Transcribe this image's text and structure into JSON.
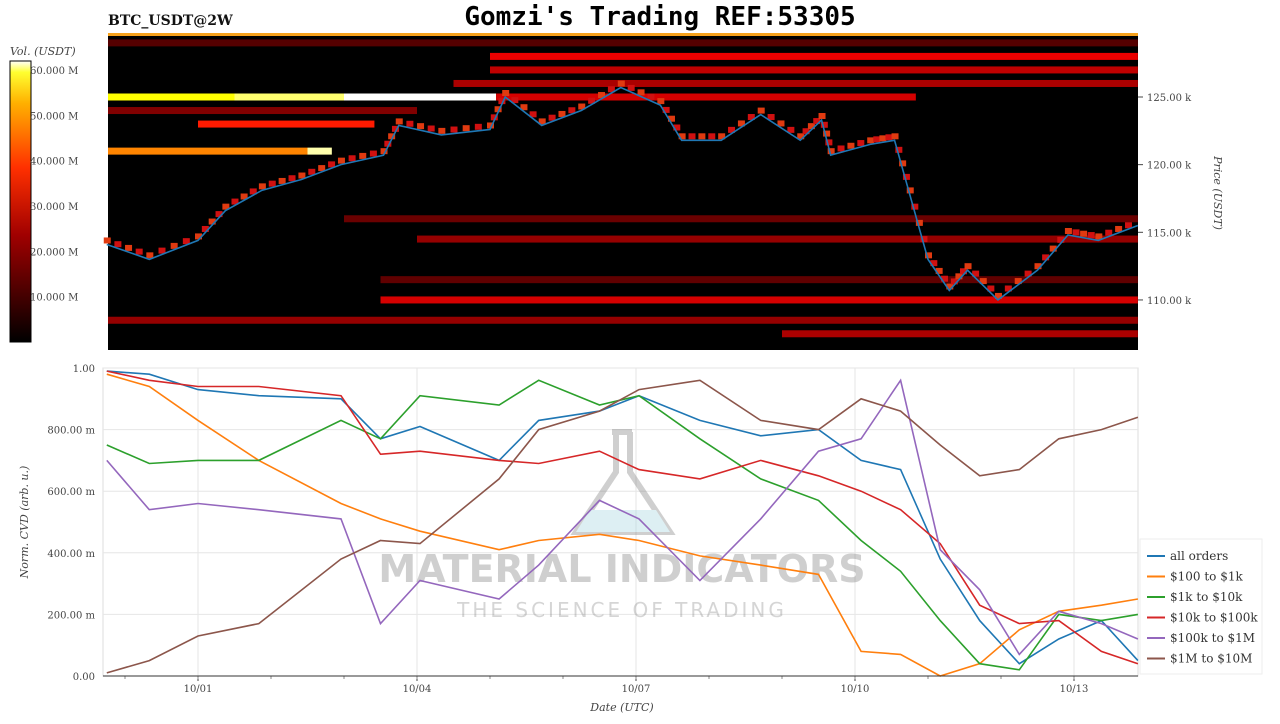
{
  "title": "Gomzi's Trading REF:53305",
  "symbol": "BTC_USDT@2W",
  "watermark": {
    "main": "MATERIAL INDICATORS",
    "sub": "THE SCIENCE OF TRADING"
  },
  "chart_data": [
    {
      "type": "heatmap",
      "colorbar": {
        "label": "Vol. (USDT)",
        "ticks": [
          "10.000 M",
          "20.000 M",
          "30.000 M",
          "40.000 M",
          "50.000 M",
          "60.000 M"
        ],
        "tick_values_M": [
          10,
          20,
          30,
          40,
          50,
          60
        ],
        "range_M": [
          0,
          62
        ],
        "colormap": "hot"
      },
      "ylabel": "Price (USDT)",
      "y_ticks": [
        "110.00 k",
        "115.00 k",
        "120.00 k",
        "125.00 k"
      ],
      "y_tick_values_k": [
        110,
        115,
        120,
        125
      ],
      "ylim_k": [
        106.3,
        129.6
      ],
      "price_color": "#1f77b4",
      "price_k": [
        [
          "09/29 18:00",
          114.1
        ],
        [
          "09/30 08:00",
          113.0
        ],
        [
          "10/01 00:00",
          114.4
        ],
        [
          "10/01 09:00",
          116.6
        ],
        [
          "10/01 21:00",
          118.1
        ],
        [
          "10/02 10:00",
          118.9
        ],
        [
          "10/02 23:00",
          120.0
        ],
        [
          "10/03 13:00",
          120.7
        ],
        [
          "10/03 18:00",
          122.9
        ],
        [
          "10/04 08:00",
          122.2
        ],
        [
          "10/05 00:00",
          122.6
        ],
        [
          "10/05 05:00",
          125.0
        ],
        [
          "10/05 17:00",
          122.9
        ],
        [
          "10/06 06:00",
          124.0
        ],
        [
          "10/06 19:00",
          125.7
        ],
        [
          "10/07 08:00",
          124.4
        ],
        [
          "10/07 15:00",
          121.8
        ],
        [
          "10/08 04:00",
          121.8
        ],
        [
          "10/08 17:00",
          123.7
        ],
        [
          "10/09 06:00",
          121.8
        ],
        [
          "10/09 13:00",
          123.3
        ],
        [
          "10/09 16:00",
          120.7
        ],
        [
          "10/10 05:00",
          121.5
        ],
        [
          "10/10 13:00",
          121.8
        ],
        [
          "10/10 18:00",
          117.8
        ],
        [
          "10/11 00:00",
          113.0
        ],
        [
          "10/11 07:00",
          110.7
        ],
        [
          "10/11 13:00",
          112.2
        ],
        [
          "10/11 23:00",
          110.0
        ],
        [
          "10/12 12:00",
          112.2
        ],
        [
          "10/12 22:00",
          114.8
        ],
        [
          "10/13 08:00",
          114.4
        ],
        [
          "10/13 21:00",
          115.5
        ]
      ],
      "liquidity_bands": [
        {
          "price_k": 125.0,
          "start": "09/29 18:00",
          "end": "10/01 12:00",
          "vol_M": 48
        },
        {
          "price_k": 125.0,
          "start": "10/01 12:00",
          "end": "10/03 00:00",
          "vol_M": 55
        },
        {
          "price_k": 125.0,
          "start": "10/03 00:00",
          "end": "10/05 02:00",
          "vol_M": 62
        },
        {
          "price_k": 125.0,
          "start": "10/05 02:00",
          "end": "10/10 20:00",
          "vol_M": 20
        },
        {
          "price_k": 121.0,
          "start": "09/29 18:00",
          "end": "10/02 12:00",
          "vol_M": 36
        },
        {
          "price_k": 121.0,
          "start": "10/02 12:00",
          "end": "10/02 20:00",
          "vol_M": 58
        },
        {
          "price_k": 123.0,
          "start": "10/01 00:00",
          "end": "10/03 10:00",
          "vol_M": 26
        },
        {
          "price_k": 128.0,
          "start": "10/05 00:00",
          "end": "10/13 21:00",
          "vol_M": 22
        },
        {
          "price_k": 127.0,
          "start": "10/05 00:00",
          "end": "10/13 21:00",
          "vol_M": 18
        },
        {
          "price_k": 126.0,
          "start": "10/04 12:00",
          "end": "10/13 21:00",
          "vol_M": 16
        },
        {
          "price_k": 129.0,
          "start": "09/29 18:00",
          "end": "10/13 21:00",
          "vol_M": 8
        },
        {
          "price_k": 124.0,
          "start": "09/29 18:00",
          "end": "10/04 00:00",
          "vol_M": 12
        },
        {
          "price_k": 116.0,
          "start": "10/03 00:00",
          "end": "10/13 21:00",
          "vol_M": 10
        },
        {
          "price_k": 114.5,
          "start": "10/04 00:00",
          "end": "10/13 21:00",
          "vol_M": 14
        },
        {
          "price_k": 110.0,
          "start": "10/03 12:00",
          "end": "10/13 21:00",
          "vol_M": 20
        },
        {
          "price_k": 108.5,
          "start": "09/29 18:00",
          "end": "10/13 21:00",
          "vol_M": 14
        },
        {
          "price_k": 107.5,
          "start": "10/09 00:00",
          "end": "10/13 21:00",
          "vol_M": 16
        },
        {
          "price_k": 111.5,
          "start": "10/03 12:00",
          "end": "10/13 21:00",
          "vol_M": 9
        }
      ]
    },
    {
      "type": "line",
      "xlabel": "Date (UTC)",
      "ylabel": "Norm. CVD (arb. u.)",
      "x_ticks": [
        "10/01",
        "10/04",
        "10/07",
        "10/10",
        "10/13"
      ],
      "y_ticks": [
        "0.00",
        "200.00 m",
        "400.00 m",
        "600.00 m",
        "800.00 m",
        "1.00"
      ],
      "y_tick_values": [
        0,
        0.2,
        0.4,
        0.6,
        0.8,
        1.0
      ],
      "ylim": [
        0,
        1
      ],
      "grid": true,
      "legend": "right",
      "x": [
        "09/29 18:00",
        "09/30 08:00",
        "10/01 00:00",
        "10/01 20:00",
        "10/02 23:00",
        "10/03 12:00",
        "10/04 01:00",
        "10/05 03:00",
        "10/05 16:00",
        "10/06 12:00",
        "10/07 01:00",
        "10/07 21:00",
        "10/08 17:00",
        "10/09 12:00",
        "10/10 02:00",
        "10/10 15:00",
        "10/11 04:00",
        "10/11 17:00",
        "10/12 06:00",
        "10/12 19:00",
        "10/13 09:00",
        "10/13 21:00"
      ],
      "series": [
        {
          "name": "all orders",
          "color": "#1f77b4",
          "values": [
            0.99,
            0.98,
            0.93,
            0.91,
            0.9,
            0.77,
            0.81,
            0.7,
            0.83,
            0.86,
            0.91,
            0.83,
            0.78,
            0.8,
            0.7,
            0.67,
            0.38,
            0.18,
            0.04,
            0.12,
            0.18,
            0.05
          ]
        },
        {
          "name": "$100 to $1k",
          "color": "#ff7f0e",
          "values": [
            0.98,
            0.94,
            0.83,
            0.7,
            0.56,
            0.51,
            0.47,
            0.41,
            0.44,
            0.46,
            0.44,
            0.39,
            0.36,
            0.33,
            0.08,
            0.07,
            0.0,
            0.04,
            0.15,
            0.21,
            0.23,
            0.25
          ]
        },
        {
          "name": "$1k to $10k",
          "color": "#2ca02c",
          "values": [
            0.75,
            0.69,
            0.7,
            0.7,
            0.83,
            0.77,
            0.91,
            0.88,
            0.96,
            0.88,
            0.91,
            0.77,
            0.64,
            0.57,
            0.44,
            0.34,
            0.18,
            0.04,
            0.02,
            0.2,
            0.18,
            0.2
          ]
        },
        {
          "name": "$10k to $100k",
          "color": "#d62728",
          "values": [
            0.99,
            0.96,
            0.94,
            0.94,
            0.91,
            0.72,
            0.73,
            0.7,
            0.69,
            0.73,
            0.67,
            0.64,
            0.7,
            0.65,
            0.6,
            0.54,
            0.43,
            0.23,
            0.17,
            0.18,
            0.08,
            0.04
          ]
        },
        {
          "name": "$100k to $1M",
          "color": "#9467bd",
          "values": [
            0.7,
            0.54,
            0.56,
            0.54,
            0.51,
            0.17,
            0.31,
            0.25,
            0.36,
            0.57,
            0.51,
            0.31,
            0.51,
            0.73,
            0.77,
            0.96,
            0.41,
            0.28,
            0.07,
            0.21,
            0.17,
            0.12
          ]
        },
        {
          "name": "$1M to $10M",
          "color": "#8c564b",
          "values": [
            0.01,
            0.05,
            0.13,
            0.17,
            0.38,
            0.44,
            0.43,
            0.64,
            0.8,
            0.86,
            0.93,
            0.96,
            0.83,
            0.8,
            0.9,
            0.86,
            0.75,
            0.65,
            0.67,
            0.77,
            0.8,
            0.84
          ]
        }
      ]
    }
  ]
}
